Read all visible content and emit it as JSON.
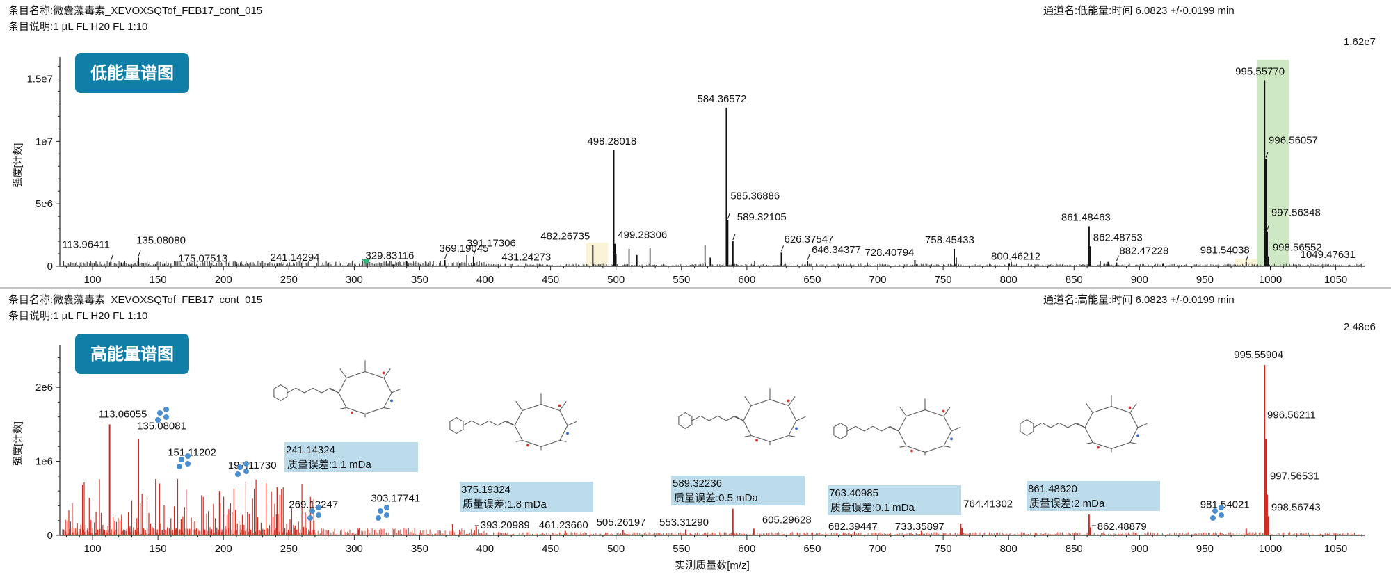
{
  "chart_data": [
    {
      "type": "line",
      "panel": "low",
      "header": {
        "item_name": "条目名称:微囊藻毒素_XEVOXSQTof_FEB17_cont_015",
        "item_desc": "条目说明:1 µL FL H20 FL 1:10",
        "channel": "通道名:低能量:时间 6.0823 +/-0.0199 min"
      },
      "title": "低能量谱图",
      "ylabel": "强度[计数]",
      "xlabel": "",
      "max_label": "1.62e7",
      "xlim": [
        75,
        1072
      ],
      "ylim": [
        0,
        16200000
      ],
      "x_ticks": [
        100,
        150,
        200,
        250,
        300,
        350,
        400,
        450,
        500,
        550,
        600,
        650,
        700,
        750,
        800,
        850,
        900,
        950,
        1000,
        1050
      ],
      "y_ticks": [
        {
          "v": 0,
          "label": "0"
        },
        {
          "v": 5000000,
          "label": "5e6"
        },
        {
          "v": 10000000,
          "label": "1e7"
        },
        {
          "v": 15000000,
          "label": "1.5e7"
        }
      ],
      "highlight_color": "#cfe8c4",
      "peak_color": "#111111",
      "peaks": [
        {
          "x": 113.96411,
          "y": 350000,
          "label": "113.96411"
        },
        {
          "x": 135.0808,
          "y": 700000,
          "label": "135.08080"
        },
        {
          "x": 175.07513,
          "y": 150000,
          "label": "175.07513"
        },
        {
          "x": 241.14294,
          "y": 180000,
          "label": "241.14294"
        },
        {
          "x": 329.83116,
          "y": 150000,
          "label": "329.83116"
        },
        {
          "x": 369.19045,
          "y": 500000,
          "label": "369.19045"
        },
        {
          "x": 391.17306,
          "y": 800000,
          "label": "391.17306"
        },
        {
          "x": 431.24273,
          "y": 200000,
          "label": "431.24273"
        },
        {
          "x": 482.26735,
          "y": 1700000,
          "label": "482.26735"
        },
        {
          "x": 498.28018,
          "y": 9300000,
          "label": "498.28018"
        },
        {
          "x": 499.28306,
          "y": 1800000,
          "label": "499.28306"
        },
        {
          "x": 584.36572,
          "y": 12700000,
          "label": "584.36572"
        },
        {
          "x": 585.36886,
          "y": 3700000,
          "label": "585.36886"
        },
        {
          "x": 589.32105,
          "y": 2000000,
          "label": "589.32105"
        },
        {
          "x": 626.37547,
          "y": 1100000,
          "label": "626.37547"
        },
        {
          "x": 646.34377,
          "y": 400000,
          "label": "646.34377"
        },
        {
          "x": 728.40794,
          "y": 500000,
          "label": "728.40794"
        },
        {
          "x": 758.45433,
          "y": 1400000,
          "label": "758.45433"
        },
        {
          "x": 800.46212,
          "y": 200000,
          "label": "800.46212"
        },
        {
          "x": 861.48463,
          "y": 3200000,
          "label": "861.48463"
        },
        {
          "x": 862.48753,
          "y": 1600000,
          "label": "862.48753"
        },
        {
          "x": 882.47228,
          "y": 300000,
          "label": "882.47228"
        },
        {
          "x": 981.54038,
          "y": 350000,
          "label": "981.54038"
        },
        {
          "x": 995.5577,
          "y": 14900000,
          "label": "995.55770"
        },
        {
          "x": 996.56057,
          "y": 8600000,
          "label": "996.56057"
        },
        {
          "x": 997.56348,
          "y": 2800000,
          "label": "997.56348"
        },
        {
          "x": 998.56552,
          "y": 800000,
          "label": "998.56552"
        },
        {
          "x": 1049.47631,
          "y": 100000,
          "label": "1049.47631"
        }
      ],
      "unlabeled_peaks": [
        {
          "x": 122,
          "y": 300000
        },
        {
          "x": 155,
          "y": 200000
        },
        {
          "x": 210,
          "y": 150000
        },
        {
          "x": 340,
          "y": 400000
        },
        {
          "x": 386,
          "y": 900000
        },
        {
          "x": 500,
          "y": 1000000
        },
        {
          "x": 510,
          "y": 1400000
        },
        {
          "x": 516,
          "y": 900000
        },
        {
          "x": 526,
          "y": 1500000
        },
        {
          "x": 568,
          "y": 1700000
        },
        {
          "x": 572,
          "y": 700000
        },
        {
          "x": 606,
          "y": 400000
        },
        {
          "x": 692,
          "y": 300000
        },
        {
          "x": 760,
          "y": 700000
        },
        {
          "x": 802,
          "y": 350000
        },
        {
          "x": 870,
          "y": 400000
        },
        {
          "x": 876,
          "y": 350000
        },
        {
          "x": 918,
          "y": 200000
        }
      ]
    },
    {
      "type": "line",
      "panel": "high",
      "header": {
        "item_name": "条目名称:微囊藻毒素_XEVOXSQTof_FEB17_cont_015",
        "item_desc": "条目说明:1 µL FL H20 FL 1:10",
        "channel": "通道名:高能量:时间 6.0823 +/-0.0199 min"
      },
      "title": "高能量谱图",
      "ylabel": "强度[计数]",
      "xlabel": "实测质量数[m/z]",
      "max_label": "2.48e6",
      "xlim": [
        75,
        1072
      ],
      "ylim": [
        0,
        2480000
      ],
      "x_ticks": [
        100,
        150,
        200,
        250,
        300,
        350,
        400,
        450,
        500,
        550,
        600,
        650,
        700,
        750,
        800,
        850,
        900,
        950,
        1000,
        1050
      ],
      "y_ticks": [
        {
          "v": 0,
          "label": "0"
        },
        {
          "v": 1000000,
          "label": "1e6"
        },
        {
          "v": 2000000,
          "label": "2e6"
        }
      ],
      "box_color": "#bcdcec",
      "peak_color": "#cc2b1f",
      "peaks": [
        {
          "x": 113.06055,
          "y": 1500000,
          "label": "113.06055"
        },
        {
          "x": 135.08081,
          "y": 1300000,
          "label": "135.08081"
        },
        {
          "x": 151.11202,
          "y": 700000,
          "label": "151.11202"
        },
        {
          "x": 197.1173,
          "y": 600000,
          "label": "197.11730"
        },
        {
          "x": 241.14324,
          "y": 650000,
          "label": "241.14324"
        },
        {
          "x": 269.12247,
          "y": 200000,
          "label": "269.12247"
        },
        {
          "x": 303.17741,
          "y": 80000,
          "label": "303.17741"
        },
        {
          "x": 375.19324,
          "y": 150000,
          "label": "375.19324"
        },
        {
          "x": 393.20989,
          "y": 120000,
          "label": "393.20989"
        },
        {
          "x": 461.2366,
          "y": 60000,
          "label": "461.23660"
        },
        {
          "x": 505.26197,
          "y": 70000,
          "label": "505.26197"
        },
        {
          "x": 553.3129,
          "y": 80000,
          "label": "553.31290"
        },
        {
          "x": 589.32236,
          "y": 360000,
          "label": "589.32236"
        },
        {
          "x": 605.29628,
          "y": 90000,
          "label": "605.29628"
        },
        {
          "x": 682.39447,
          "y": 50000,
          "label": "682.39447"
        },
        {
          "x": 733.35897,
          "y": 60000,
          "label": "733.35897"
        },
        {
          "x": 763.40985,
          "y": 160000,
          "label": "763.40985"
        },
        {
          "x": 764.41302,
          "y": 100000,
          "label": "764.41302"
        },
        {
          "x": 861.4862,
          "y": 280000,
          "label": "861.48620"
        },
        {
          "x": 862.48879,
          "y": 110000,
          "label": "862.48879"
        },
        {
          "x": 981.54021,
          "y": 90000,
          "label": "981.54021"
        },
        {
          "x": 995.55904,
          "y": 2300000,
          "label": "995.55904"
        },
        {
          "x": 996.56211,
          "y": 1300000,
          "label": "996.56211"
        },
        {
          "x": 997.56531,
          "y": 550000,
          "label": "997.56531"
        },
        {
          "x": 998.56743,
          "y": 260000,
          "label": "998.56743"
        }
      ],
      "annotations": [
        {
          "label": "241.14324",
          "note": "质量误差:1.1 mDa"
        },
        {
          "label": "375.19324",
          "note": "质量误差:1.8 mDa"
        },
        {
          "label": "589.32236",
          "note": "质量误差:0.5 mDa"
        },
        {
          "label": "763.40985",
          "note": "质量误差:0.1 mDa"
        },
        {
          "label": "861.48620",
          "note": "质量误差:2 mDa"
        }
      ]
    }
  ]
}
